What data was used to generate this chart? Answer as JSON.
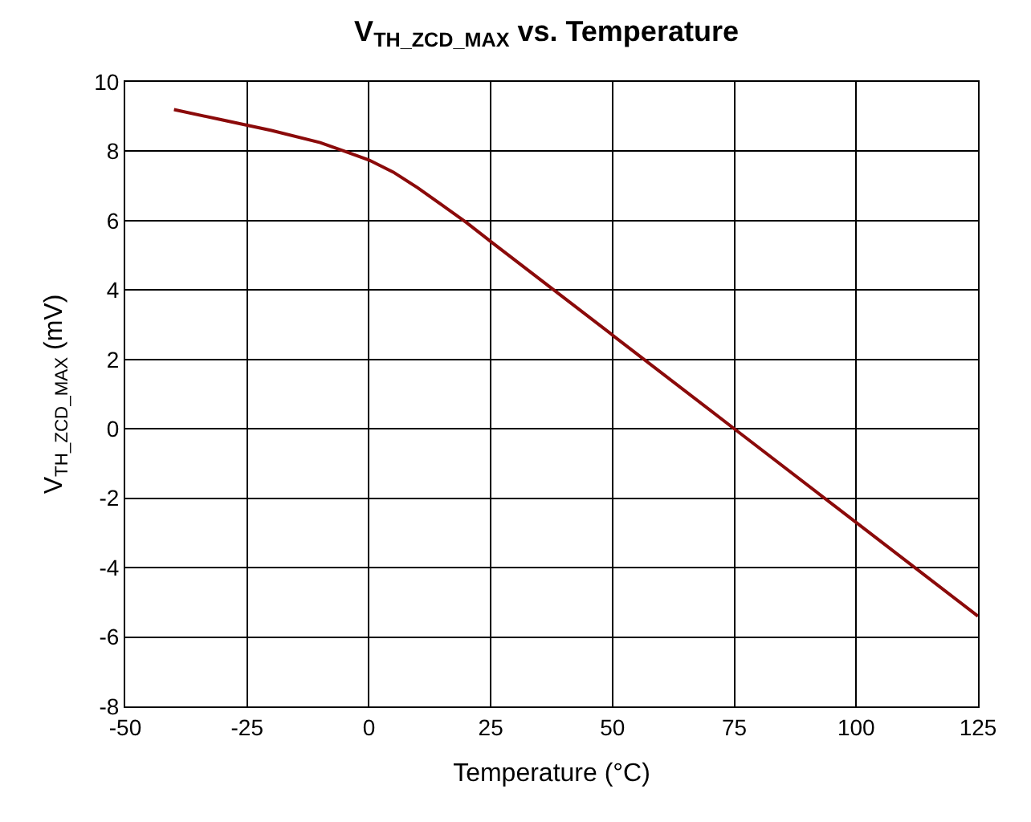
{
  "chart_data": {
    "type": "line",
    "title": "V$_{TH_ZCD_MAX}$ vs. Temperature",
    "xlabel": "Temperature (°C)",
    "ylabel": "V$_{TH_ZCD_MAX}$ (mV)",
    "x": [
      -40,
      -30,
      -20,
      -10,
      -5,
      0,
      5,
      10,
      15,
      20,
      25,
      50,
      75,
      100,
      125
    ],
    "series": [
      {
        "color": "#8b0a0a",
        "values": [
          9.2,
          8.9,
          8.6,
          8.25,
          8.0,
          7.75,
          7.4,
          6.95,
          6.45,
          5.95,
          5.4,
          2.7,
          0.0,
          -2.7,
          -5.4
        ]
      }
    ],
    "xlim": [
      -50,
      125
    ],
    "xticks": [
      -50,
      -25,
      0,
      25,
      50,
      75,
      100,
      125
    ],
    "ylim": [
      -8,
      10
    ],
    "yticks": [
      -8,
      -6,
      -4,
      -2,
      0,
      2,
      4,
      6,
      8,
      10
    ],
    "grid": true,
    "marker": "none",
    "line_style": "solid"
  }
}
